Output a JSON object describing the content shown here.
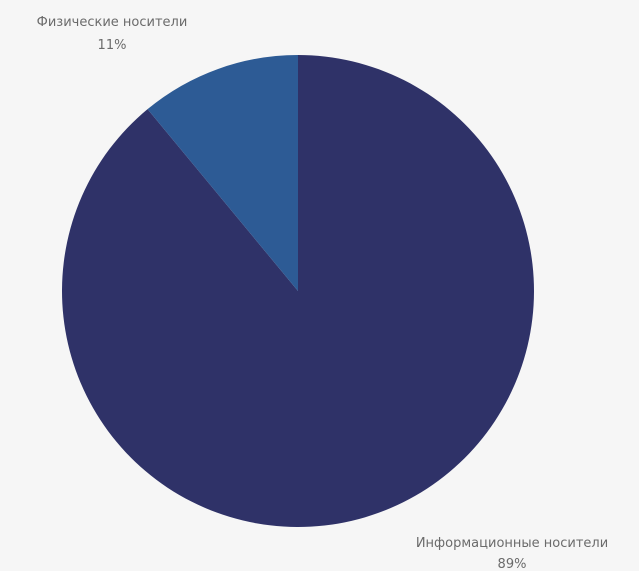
{
  "chart_data": {
    "type": "pie",
    "title": "",
    "start_angle_deg": 0,
    "direction": "clockwise",
    "slices": [
      {
        "name": "Информационные носители",
        "value": 89,
        "value_label": "89%",
        "color": "#2f3268"
      },
      {
        "name": "Физические носители",
        "value": 11,
        "value_label": "11%",
        "color": "#2d5b95"
      }
    ]
  }
}
